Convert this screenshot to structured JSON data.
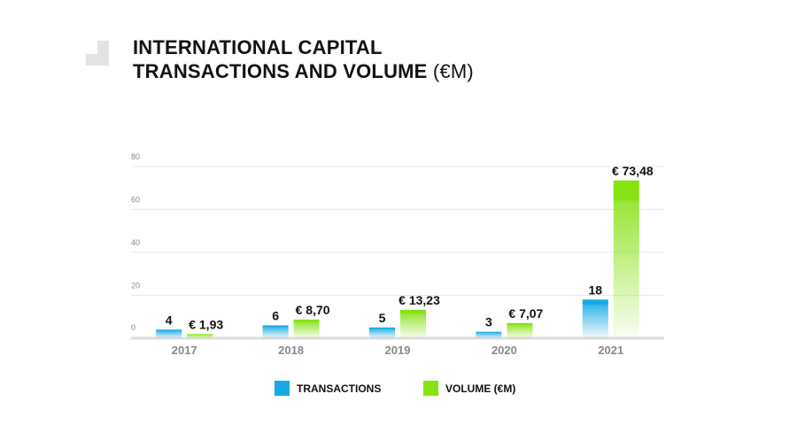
{
  "title": {
    "line1": "INTERNATIONAL CAPITAL",
    "line2_bold": "TRANSACTIONS AND VOLUME",
    "line2_suffix": " (€M)"
  },
  "colors": {
    "transactions": "#16a9e6",
    "volume": "#86e213",
    "grid": "#e8e8e8",
    "axis_text": "#888888",
    "logo": "#e3e3e3"
  },
  "chart_data": {
    "type": "bar",
    "categories": [
      "2017",
      "2018",
      "2019",
      "2020",
      "2021"
    ],
    "series": [
      {
        "name": "TRANSACTIONS",
        "values": [
          4,
          6,
          5,
          3,
          18
        ],
        "labels": [
          "4",
          "6",
          "5",
          "3",
          "18"
        ]
      },
      {
        "name": "VOLUME (€M)",
        "values": [
          1.93,
          8.7,
          13.23,
          7.07,
          73.48
        ],
        "labels": [
          "€ 1,93",
          "€ 8,70",
          "€ 13,23",
          "€ 7,07",
          "€ 73,48"
        ]
      }
    ],
    "y_ticks": [
      "0",
      "20",
      "40",
      "60",
      "80"
    ],
    "ylim": [
      0,
      80
    ],
    "grid": true,
    "legend_position": "bottom"
  }
}
